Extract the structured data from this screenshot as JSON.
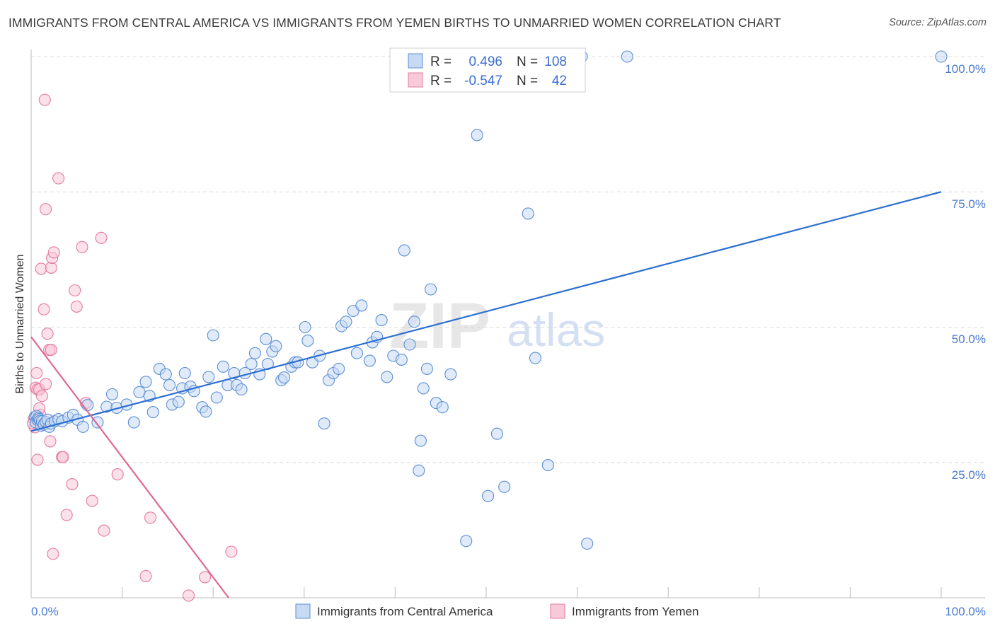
{
  "title": "IMMIGRANTS FROM CENTRAL AMERICA VS IMMIGRANTS FROM YEMEN BIRTHS TO UNMARRIED WOMEN CORRELATION CHART",
  "source": "Source: ZipAtlas.com",
  "watermark": {
    "zip": "ZIP",
    "atlas": "atlas"
  },
  "colors": {
    "blue": "#5b8fd6",
    "blue_fill": "#c7d9f3",
    "blue_line": "#2d6fd1",
    "pink": "#e57ba0",
    "pink_fill": "#f8c9d8",
    "pink_line": "#e0688f",
    "grid": "#dcdcdc",
    "tick_text": "#4a7bd0"
  },
  "stats": {
    "r_label": "R =",
    "n_label": "N =",
    "rows": [
      {
        "series": "blue",
        "r": "0.496",
        "n": "108"
      },
      {
        "series": "pink",
        "r": "-0.547",
        "n": "42"
      }
    ]
  },
  "chart_data": {
    "type": "scatter",
    "xlabel": "",
    "ylabel": "Births to Unmarried Women",
    "xlim": [
      0,
      100
    ],
    "ylim": [
      0,
      100
    ],
    "x_tick_labels": [
      "0.0%",
      "100.0%"
    ],
    "y_tick_labels": [
      "100.0%",
      "75.0%",
      "50.0%",
      "25.0%"
    ],
    "y_ticks": [
      100,
      75,
      50,
      25
    ],
    "grid": true,
    "legend_position": "bottom",
    "series": [
      {
        "name": "Immigrants from Central America",
        "color": "blue",
        "trend": {
          "x": [
            0,
            100
          ],
          "y": [
            30.8,
            75
          ]
        },
        "points": [
          [
            0.4,
            33.4
          ],
          [
            0.5,
            32.4
          ],
          [
            0.6,
            33.6
          ],
          [
            0.7,
            32.9
          ],
          [
            0.8,
            33.2
          ],
          [
            0.9,
            33.0
          ],
          [
            1.0,
            32.7
          ],
          [
            1.1,
            31.8
          ],
          [
            1.2,
            32.6
          ],
          [
            1.4,
            32.0
          ],
          [
            1.6,
            32.5
          ],
          [
            1.8,
            32.9
          ],
          [
            2.0,
            31.6
          ],
          [
            2.2,
            32.2
          ],
          [
            2.6,
            32.6
          ],
          [
            3.0,
            33.0
          ],
          [
            3.4,
            32.6
          ],
          [
            4.1,
            33.3
          ],
          [
            4.6,
            33.8
          ],
          [
            5.1,
            32.9
          ],
          [
            5.7,
            31.6
          ],
          [
            6.2,
            35.6
          ],
          [
            7.3,
            32.4
          ],
          [
            8.3,
            35.3
          ],
          [
            8.9,
            37.6
          ],
          [
            9.4,
            35.1
          ],
          [
            10.5,
            35.7
          ],
          [
            11.3,
            32.4
          ],
          [
            11.9,
            38.0
          ],
          [
            12.6,
            39.9
          ],
          [
            13.0,
            37.3
          ],
          [
            13.4,
            34.3
          ],
          [
            14.1,
            42.3
          ],
          [
            14.8,
            41.3
          ],
          [
            15.2,
            39.3
          ],
          [
            15.5,
            35.7
          ],
          [
            16.2,
            36.2
          ],
          [
            16.6,
            38.7
          ],
          [
            16.9,
            41.5
          ],
          [
            17.5,
            39.0
          ],
          [
            17.9,
            38.2
          ],
          [
            18.8,
            35.2
          ],
          [
            19.2,
            34.4
          ],
          [
            19.5,
            40.8
          ],
          [
            20.0,
            48.5
          ],
          [
            20.4,
            37.0
          ],
          [
            21.1,
            42.7
          ],
          [
            21.6,
            39.3
          ],
          [
            22.3,
            41.5
          ],
          [
            22.6,
            39.3
          ],
          [
            23.1,
            38.5
          ],
          [
            23.5,
            41.5
          ],
          [
            24.2,
            43.2
          ],
          [
            24.6,
            45.2
          ],
          [
            25.1,
            41.3
          ],
          [
            25.8,
            47.8
          ],
          [
            26.0,
            43.2
          ],
          [
            26.5,
            45.5
          ],
          [
            26.9,
            46.5
          ],
          [
            27.5,
            40.2
          ],
          [
            27.8,
            40.7
          ],
          [
            28.6,
            42.7
          ],
          [
            29.0,
            43.5
          ],
          [
            29.3,
            43.5
          ],
          [
            30.1,
            50.0
          ],
          [
            30.4,
            47.5
          ],
          [
            30.9,
            43.5
          ],
          [
            31.7,
            44.7
          ],
          [
            32.2,
            32.2
          ],
          [
            32.7,
            40.2
          ],
          [
            33.2,
            41.5
          ],
          [
            33.8,
            42.3
          ],
          [
            34.1,
            50.2
          ],
          [
            34.6,
            51.0
          ],
          [
            35.4,
            53.0
          ],
          [
            35.8,
            45.2
          ],
          [
            36.3,
            54.0
          ],
          [
            37.2,
            43.8
          ],
          [
            37.5,
            47.2
          ],
          [
            38.0,
            48.2
          ],
          [
            38.5,
            51.3
          ],
          [
            39.1,
            40.8
          ],
          [
            39.8,
            44.7
          ],
          [
            41.0,
            64.2
          ],
          [
            40.7,
            44.0
          ],
          [
            41.6,
            46.8
          ],
          [
            42.1,
            51.0
          ],
          [
            42.6,
            23.5
          ],
          [
            42.8,
            29.0
          ],
          [
            43.1,
            38.7
          ],
          [
            43.5,
            42.3
          ],
          [
            43.9,
            57.0
          ],
          [
            44.5,
            36.0
          ],
          [
            45.2,
            35.2
          ],
          [
            46.1,
            41.3
          ],
          [
            47.8,
            10.5
          ],
          [
            49.0,
            85.5
          ],
          [
            50.2,
            18.8
          ],
          [
            51.2,
            30.3
          ],
          [
            52.0,
            20.5
          ],
          [
            54.6,
            71.0
          ],
          [
            55.4,
            44.3
          ],
          [
            56.8,
            24.5
          ],
          [
            61.1,
            10.0
          ],
          [
            65.5,
            100
          ],
          [
            60.1,
            100
          ],
          [
            100,
            100
          ],
          [
            60.5,
            100
          ]
        ]
      },
      {
        "name": "Immigrants from Yemen",
        "color": "pink",
        "trend": {
          "x": [
            0,
            21.7
          ],
          "y": [
            48.2,
            0
          ]
        },
        "points": [
          [
            0.3,
            33.0
          ],
          [
            0.4,
            31.5
          ],
          [
            0.5,
            38.8
          ],
          [
            0.6,
            41.5
          ],
          [
            0.7,
            38.5
          ],
          [
            0.7,
            25.5
          ],
          [
            0.9,
            38.5
          ],
          [
            1.0,
            33.8
          ],
          [
            1.1,
            60.8
          ],
          [
            1.2,
            37.3
          ],
          [
            1.4,
            53.3
          ],
          [
            1.6,
            39.5
          ],
          [
            1.5,
            92.0
          ],
          [
            1.6,
            71.8
          ],
          [
            1.8,
            48.8
          ],
          [
            2.0,
            45.8
          ],
          [
            2.1,
            28.9
          ],
          [
            2.2,
            45.8
          ],
          [
            2.2,
            61.0
          ],
          [
            2.3,
            62.8
          ],
          [
            2.4,
            8.1
          ],
          [
            2.5,
            63.8
          ],
          [
            3.0,
            77.5
          ],
          [
            3.4,
            26.0
          ],
          [
            3.5,
            26.0
          ],
          [
            3.9,
            15.3
          ],
          [
            4.5,
            21.0
          ],
          [
            4.8,
            56.8
          ],
          [
            5.0,
            53.8
          ],
          [
            5.6,
            64.8
          ],
          [
            6.0,
            36.0
          ],
          [
            6.7,
            17.9
          ],
          [
            7.7,
            66.5
          ],
          [
            8.0,
            12.4
          ],
          [
            9.5,
            22.8
          ],
          [
            12.6,
            4.0
          ],
          [
            13.1,
            14.8
          ],
          [
            17.3,
            0.4
          ],
          [
            19.1,
            3.8
          ],
          [
            22.0,
            8.5
          ],
          [
            0.2,
            32.2
          ],
          [
            0.9,
            35.0
          ]
        ]
      }
    ]
  }
}
